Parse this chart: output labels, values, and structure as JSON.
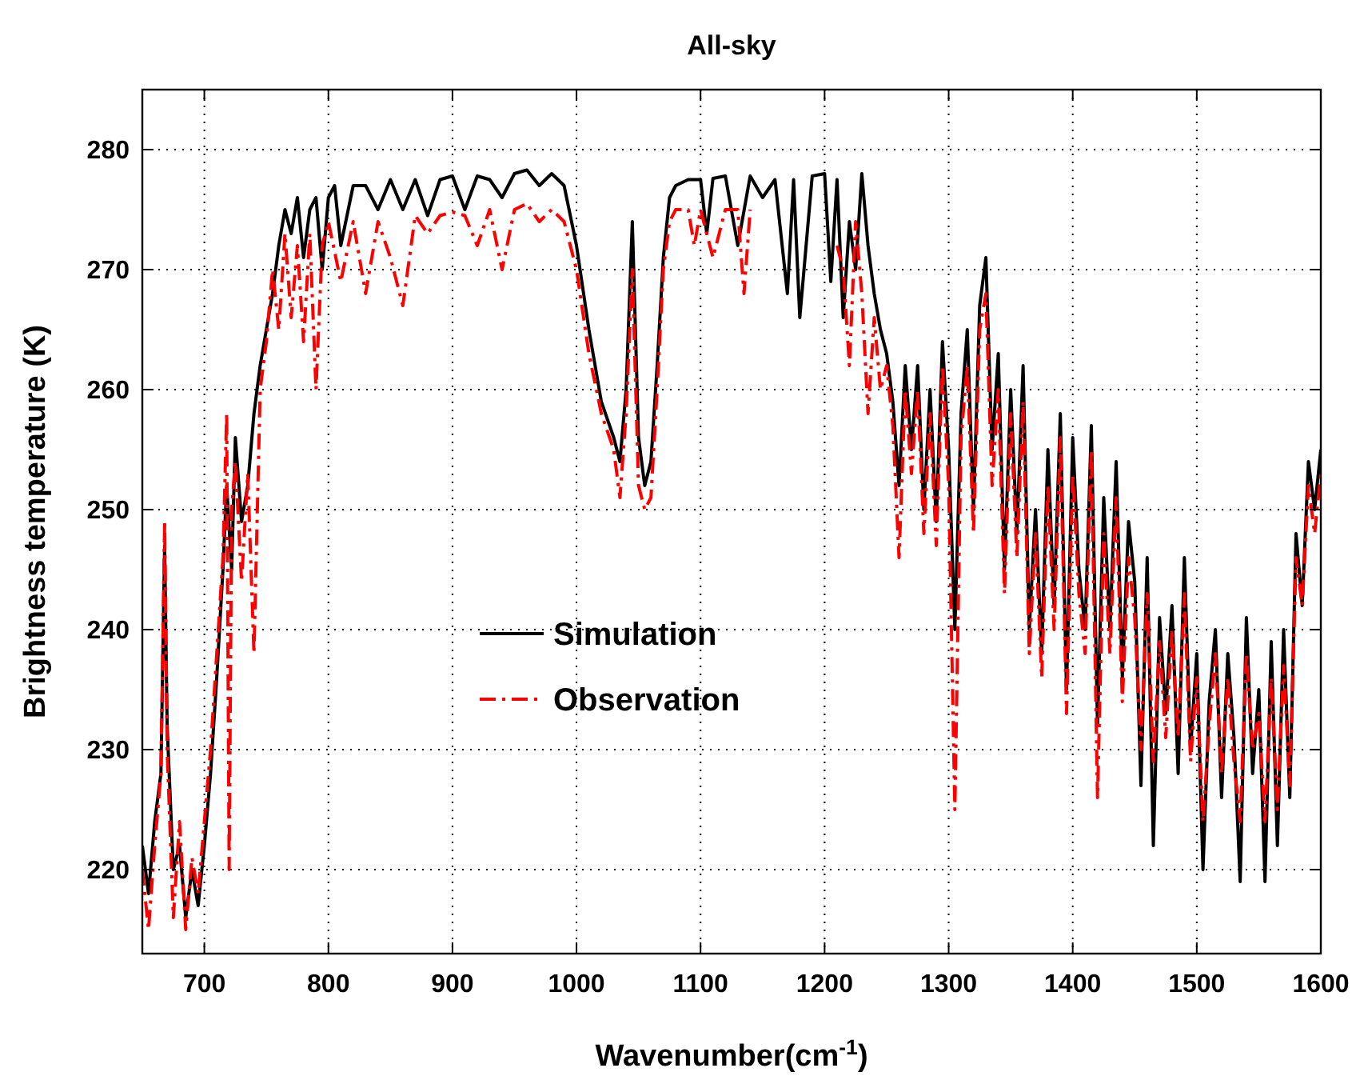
{
  "chart_data": {
    "type": "line",
    "title": "All-sky",
    "xlabel": "Wavenumber(cm$^{-1}$)",
    "ylabel": "Brightness temperature (K)",
    "xlim": [
      650,
      1600
    ],
    "ylim": [
      213,
      285
    ],
    "xticks": [
      700,
      800,
      900,
      1000,
      1100,
      1200,
      1300,
      1400,
      1500,
      1600
    ],
    "yticks": [
      220,
      230,
      240,
      250,
      260,
      270,
      280
    ],
    "grid": true,
    "legend": "center",
    "series": [
      {
        "name": "Simulation",
        "color": "#000000",
        "line_style": "solid",
        "x": [
          650,
          655,
          660,
          665,
          668,
          670,
          675,
          680,
          685,
          690,
          695,
          700,
          705,
          710,
          715,
          718,
          722,
          725,
          730,
          735,
          740,
          745,
          750,
          755,
          760,
          765,
          770,
          775,
          780,
          785,
          790,
          795,
          800,
          805,
          810,
          820,
          830,
          840,
          850,
          860,
          870,
          880,
          890,
          900,
          910,
          920,
          930,
          940,
          950,
          960,
          970,
          980,
          990,
          1000,
          1010,
          1020,
          1030,
          1035,
          1040,
          1045,
          1050,
          1055,
          1060,
          1065,
          1070,
          1075,
          1080,
          1090,
          1100,
          1105,
          1110,
          1120,
          1130,
          1140,
          1150,
          1160,
          1170,
          1175,
          1180,
          1190,
          1200,
          1205,
          1210,
          1215,
          1220,
          1225,
          1230,
          1235,
          1240,
          1245,
          1250,
          1255,
          1260,
          1265,
          1270,
          1275,
          1280,
          1285,
          1290,
          1295,
          1300,
          1305,
          1310,
          1315,
          1320,
          1325,
          1330,
          1335,
          1340,
          1345,
          1350,
          1355,
          1360,
          1365,
          1370,
          1375,
          1380,
          1385,
          1390,
          1395,
          1400,
          1405,
          1410,
          1415,
          1420,
          1425,
          1430,
          1435,
          1440,
          1445,
          1450,
          1455,
          1460,
          1465,
          1470,
          1475,
          1480,
          1485,
          1490,
          1495,
          1500,
          1505,
          1510,
          1515,
          1520,
          1525,
          1530,
          1535,
          1540,
          1545,
          1550,
          1555,
          1560,
          1565,
          1570,
          1575,
          1580,
          1585,
          1590,
          1595,
          1600
        ],
        "values": [
          222,
          218,
          224,
          228,
          247,
          232,
          220,
          222,
          216,
          220,
          217,
          222,
          228,
          236,
          245,
          252,
          245,
          256,
          249,
          252,
          258,
          262,
          265,
          268,
          272,
          275,
          273,
          276,
          271,
          275,
          276,
          270,
          276,
          277,
          272,
          277,
          277,
          275,
          277.5,
          275,
          277.5,
          274.5,
          277.5,
          277.8,
          275,
          277.8,
          277.5,
          276,
          278,
          278.3,
          277,
          278,
          277,
          272,
          265,
          259,
          256,
          254,
          260,
          274,
          256,
          252,
          254,
          262,
          271,
          276,
          277,
          277.5,
          277.5,
          273,
          277.6,
          277.8,
          272,
          277.8,
          276,
          277.5,
          268,
          277.5,
          266,
          277.8,
          278,
          269,
          277.5,
          266,
          274,
          270,
          278,
          272,
          268,
          265,
          263,
          259,
          252,
          262,
          255,
          262,
          250,
          260,
          249,
          264,
          255,
          240,
          258,
          265,
          250,
          267,
          271,
          255,
          263,
          245,
          260,
          248,
          262,
          240,
          250,
          238,
          255,
          242,
          258,
          235,
          256,
          245,
          240,
          257,
          232,
          251,
          240,
          254,
          236,
          249,
          244,
          227,
          246,
          222,
          241,
          233,
          242,
          228,
          246,
          230,
          238,
          220,
          234,
          240,
          226,
          238,
          231,
          219,
          241,
          228,
          235,
          219,
          239,
          222,
          240,
          226,
          248,
          242,
          254,
          250,
          255
        ]
      },
      {
        "name": "Observation",
        "color": "#ff0000",
        "line_style": "dashdot",
        "x": [
          650,
          655,
          660,
          665,
          668,
          670,
          675,
          680,
          685,
          690,
          695,
          700,
          705,
          710,
          715,
          718,
          720,
          722,
          725,
          730,
          735,
          740,
          745,
          750,
          755,
          760,
          765,
          770,
          775,
          780,
          785,
          790,
          795,
          800,
          810,
          820,
          830,
          840,
          850,
          860,
          870,
          880,
          890,
          900,
          910,
          920,
          930,
          940,
          950,
          960,
          970,
          980,
          990,
          1000,
          1010,
          1020,
          1030,
          1035,
          1040,
          1045,
          1050,
          1055,
          1060,
          1065,
          1070,
          1075,
          1080,
          1090,
          1095,
          1100,
          1110,
          1120,
          1130,
          1135,
          1140
        ],
        "values": [
          220,
          215,
          222,
          228,
          249,
          230,
          216,
          224,
          215,
          221,
          218,
          224,
          230,
          238,
          246,
          258,
          220,
          250,
          254,
          244,
          253,
          238,
          260,
          264,
          270,
          265,
          273,
          266,
          272,
          264,
          273,
          260,
          272,
          274,
          269,
          274,
          268,
          274,
          271,
          267,
          274.5,
          273,
          274.5,
          274.8,
          274.5,
          272,
          275,
          270,
          275,
          275.5,
          274,
          275,
          274,
          270,
          263,
          258,
          255,
          251,
          258,
          270,
          252,
          250,
          251,
          260,
          270,
          274,
          275,
          275,
          272,
          275,
          271,
          275,
          275,
          268,
          275
        ]
      },
      {
        "color": "#ff0000",
        "line_style": "dashdot",
        "x": [
          1210,
          1215,
          1220,
          1225,
          1230,
          1235,
          1240,
          1245,
          1250,
          1255,
          1260,
          1265,
          1270,
          1275,
          1280,
          1285,
          1290,
          1295,
          1300,
          1305,
          1310,
          1315,
          1320,
          1325,
          1330,
          1335,
          1340,
          1345,
          1350,
          1355,
          1360,
          1365,
          1370,
          1375,
          1380,
          1385,
          1390,
          1395,
          1400,
          1405,
          1410,
          1415,
          1420,
          1425,
          1430,
          1435,
          1440,
          1445,
          1450,
          1455,
          1460,
          1465,
          1470,
          1475,
          1480,
          1485,
          1490,
          1495,
          1500,
          1505,
          1510,
          1515,
          1520,
          1525,
          1530,
          1535,
          1540,
          1545,
          1550,
          1555,
          1560,
          1565,
          1570,
          1575,
          1580,
          1585,
          1590,
          1595,
          1600
        ],
        "values": [
          272,
          270,
          262,
          274,
          268,
          258,
          266,
          260,
          262,
          257,
          246,
          260,
          253,
          260,
          248,
          258,
          247,
          262,
          252,
          225,
          256,
          262,
          248,
          265,
          268,
          252,
          260,
          243,
          258,
          246,
          259,
          238,
          248,
          236,
          252,
          240,
          256,
          233,
          253,
          243,
          238,
          255,
          226,
          248,
          238,
          251,
          234,
          246,
          241,
          230,
          243,
          229,
          239,
          231,
          240,
          231,
          243,
          229,
          236,
          224,
          232,
          238,
          228,
          236,
          229,
          224,
          238,
          230,
          233,
          224,
          236,
          225,
          237,
          227,
          246,
          242,
          252,
          248,
          253
        ]
      }
    ]
  }
}
